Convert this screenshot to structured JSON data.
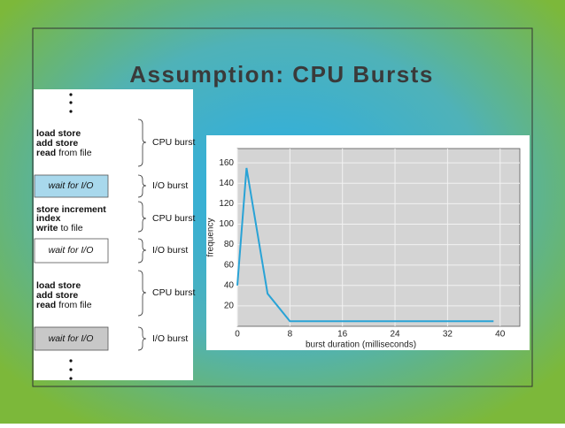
{
  "title": "Assumption: CPU Bursts",
  "diagram": {
    "segments": [
      {
        "lines": [
          {
            "bold": "load store"
          },
          {
            "bold": "add store"
          },
          {
            "bold": "read",
            "plain": "from file"
          }
        ],
        "label": "CPU burst"
      },
      {
        "box": "wait for I/O",
        "color": "#a8d8ec",
        "label": "I/O burst"
      },
      {
        "lines": [
          {
            "bold": "store increment"
          },
          {
            "bold": "index"
          },
          {
            "bold": "write",
            "plain": "to file"
          }
        ],
        "label": "CPU burst"
      },
      {
        "box": "wait for I/O",
        "color": "#ffffff",
        "label": "I/O burst"
      },
      {
        "lines": [
          {
            "bold": "load store"
          },
          {
            "bold": "add store"
          },
          {
            "bold": "read",
            "plain": "from file"
          }
        ],
        "label": "CPU burst"
      },
      {
        "box": "wait for I/O",
        "color": "#c8c8c8",
        "label": "I/O burst"
      }
    ]
  },
  "chart_data": {
    "type": "line",
    "x_label": "burst duration (milliseconds)",
    "y_label": "frequency",
    "x": [
      0,
      1.4,
      4.6,
      8,
      39
    ],
    "series": [
      {
        "color": "#29a3d6",
        "values": [
          40,
          155,
          32,
          5,
          5
        ]
      }
    ],
    "xlim": [
      0,
      43
    ],
    "ylim": [
      0,
      174
    ],
    "xticks": [
      0,
      8,
      16,
      24,
      32,
      40
    ],
    "yticks": [
      20,
      40,
      60,
      80,
      100,
      120,
      140,
      160
    ],
    "grid": true
  }
}
